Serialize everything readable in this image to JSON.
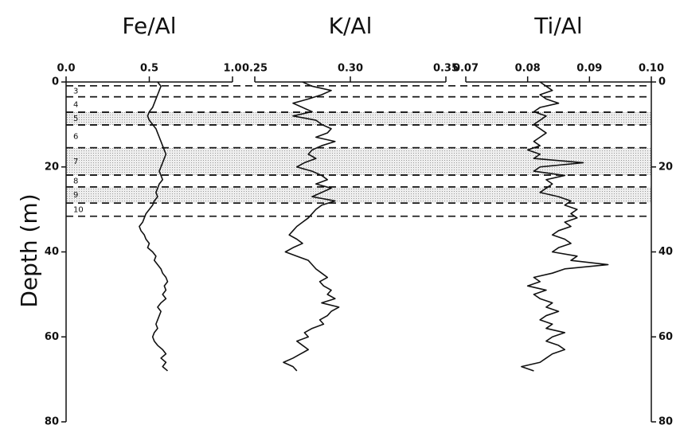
{
  "chart_data": {
    "type": "line",
    "ylabel": "Depth (m)",
    "invert_y": true,
    "ylim": [
      0,
      80
    ],
    "yticks": [
      0,
      20,
      40,
      60,
      80
    ],
    "y": [
      0,
      1,
      2,
      3,
      4,
      5,
      6,
      7,
      8,
      9,
      10,
      11,
      12,
      13,
      14,
      15,
      16,
      17,
      18,
      19,
      20,
      21,
      22,
      23,
      24,
      25,
      26,
      27,
      28,
      29,
      30,
      31,
      32,
      33,
      34,
      35,
      36,
      37,
      38,
      39,
      40,
      41,
      42,
      43,
      44,
      45,
      46,
      47,
      48,
      49,
      50,
      51,
      52,
      53,
      54,
      55,
      56,
      57,
      58,
      59,
      60,
      61,
      62,
      63,
      64,
      65,
      66,
      67,
      68
    ],
    "series": [
      {
        "name": "Fe/Al",
        "color": "#111111",
        "xlim": [
          0,
          1
        ],
        "xticks": [
          {
            "value": 0,
            "label": "0.0"
          },
          0.5,
          {
            "value": 1,
            "label": "1.0"
          }
        ],
        "values": [
          0.55,
          0.57,
          0.56,
          0.55,
          0.54,
          0.53,
          0.52,
          0.5,
          0.49,
          0.5,
          0.52,
          0.54,
          0.55,
          0.56,
          0.57,
          0.58,
          0.59,
          0.6,
          0.59,
          0.58,
          0.57,
          0.56,
          0.57,
          0.58,
          0.56,
          0.55,
          0.54,
          0.55,
          0.53,
          0.52,
          0.5,
          0.48,
          0.47,
          0.46,
          0.44,
          0.45,
          0.47,
          0.48,
          0.5,
          0.49,
          0.52,
          0.54,
          0.53,
          0.55,
          0.57,
          0.58,
          0.6,
          0.61,
          0.59,
          0.6,
          0.58,
          0.6,
          0.57,
          0.55,
          0.57,
          0.56,
          0.55,
          0.54,
          0.55,
          0.53,
          0.52,
          0.53,
          0.55,
          0.58,
          0.6,
          0.57,
          0.6,
          0.58,
          0.61
        ]
      },
      {
        "name": "K/Al",
        "color": "#111111",
        "xlim": [
          0.25,
          0.35
        ],
        "xticks": [
          0.25,
          {
            "value": 0.3,
            "label": "0.30"
          },
          0.35
        ],
        "values": [
          0.275,
          0.28,
          0.29,
          0.285,
          0.278,
          0.27,
          0.275,
          0.28,
          0.27,
          0.282,
          0.285,
          0.29,
          0.288,
          0.282,
          0.292,
          0.285,
          0.28,
          0.278,
          0.282,
          0.276,
          0.272,
          0.28,
          0.285,
          0.288,
          0.282,
          0.29,
          0.285,
          0.28,
          0.292,
          0.285,
          0.282,
          0.28,
          0.278,
          0.275,
          0.272,
          0.27,
          0.268,
          0.272,
          0.275,
          0.27,
          0.266,
          0.272,
          0.278,
          0.28,
          0.282,
          0.285,
          0.288,
          0.284,
          0.286,
          0.29,
          0.288,
          0.292,
          0.285,
          0.294,
          0.29,
          0.288,
          0.284,
          0.286,
          0.28,
          0.276,
          0.278,
          0.272,
          0.275,
          0.278,
          0.274,
          0.27,
          0.265,
          0.27,
          0.272
        ]
      },
      {
        "name": "Ti/Al",
        "color": "#111111",
        "xlim": [
          0.07,
          0.1
        ],
        "xticks": [
          0.07,
          0.08,
          0.09,
          {
            "value": 0.1,
            "label": "0.10"
          }
        ],
        "values": [
          0.082,
          0.083,
          0.084,
          0.082,
          0.083,
          0.085,
          0.082,
          0.081,
          0.083,
          0.082,
          0.081,
          0.082,
          0.083,
          0.082,
          0.081,
          0.082,
          0.08,
          0.082,
          0.081,
          0.089,
          0.082,
          0.081,
          0.086,
          0.083,
          0.084,
          0.083,
          0.082,
          0.085,
          0.087,
          0.086,
          0.088,
          0.087,
          0.088,
          0.086,
          0.087,
          0.085,
          0.084,
          0.086,
          0.087,
          0.085,
          0.084,
          0.088,
          0.087,
          0.093,
          0.086,
          0.084,
          0.081,
          0.082,
          0.08,
          0.083,
          0.081,
          0.082,
          0.084,
          0.083,
          0.085,
          0.083,
          0.082,
          0.084,
          0.083,
          0.086,
          0.084,
          0.083,
          0.085,
          0.086,
          0.084,
          0.083,
          0.082,
          0.079,
          0.081
        ]
      }
    ],
    "layers": [
      {
        "label": "3",
        "top": 0.9,
        "bottom": 3.5,
        "shaded": false
      },
      {
        "label": "4",
        "top": 3.5,
        "bottom": 7.1,
        "shaded": false
      },
      {
        "label": "5",
        "top": 7.1,
        "bottom": 10.1,
        "shaded": true
      },
      {
        "label": "6",
        "top": 10.1,
        "bottom": 15.5,
        "shaded": false
      },
      {
        "label": "7",
        "top": 15.5,
        "bottom": 21.9,
        "shaded": true
      },
      {
        "label": "8",
        "top": 21.9,
        "bottom": 24.7,
        "shaded": false
      },
      {
        "label": "9",
        "top": 24.7,
        "bottom": 28.5,
        "shaded": true
      },
      {
        "label": "10",
        "top": 28.5,
        "bottom": 31.6,
        "shaded": false
      }
    ]
  }
}
